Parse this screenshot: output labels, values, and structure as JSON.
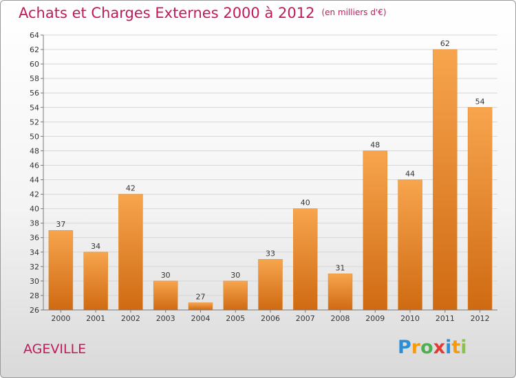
{
  "title": "Achats et Charges Externes 2000 à 2012",
  "unit": "(en milliers d'€)",
  "town": "AGEVILLE",
  "logo_text": "Proxiti",
  "colors": {
    "bar_light": "#f7a54e",
    "bar_dark": "#cf6a12",
    "title": "#c2185b"
  },
  "chart_data": {
    "type": "bar",
    "categories": [
      "2000",
      "2001",
      "2002",
      "2003",
      "2004",
      "2005",
      "2006",
      "2007",
      "2008",
      "2009",
      "2010",
      "2011",
      "2012"
    ],
    "values": [
      37,
      34,
      42,
      30,
      27,
      30,
      33,
      40,
      31,
      48,
      44,
      62,
      54
    ],
    "ylim": [
      26,
      64
    ],
    "yticks": [
      26,
      28,
      30,
      32,
      34,
      36,
      38,
      40,
      42,
      44,
      46,
      48,
      50,
      52,
      54,
      56,
      58,
      60,
      62,
      64
    ],
    "grid": true,
    "xlabel": "",
    "ylabel": ""
  }
}
